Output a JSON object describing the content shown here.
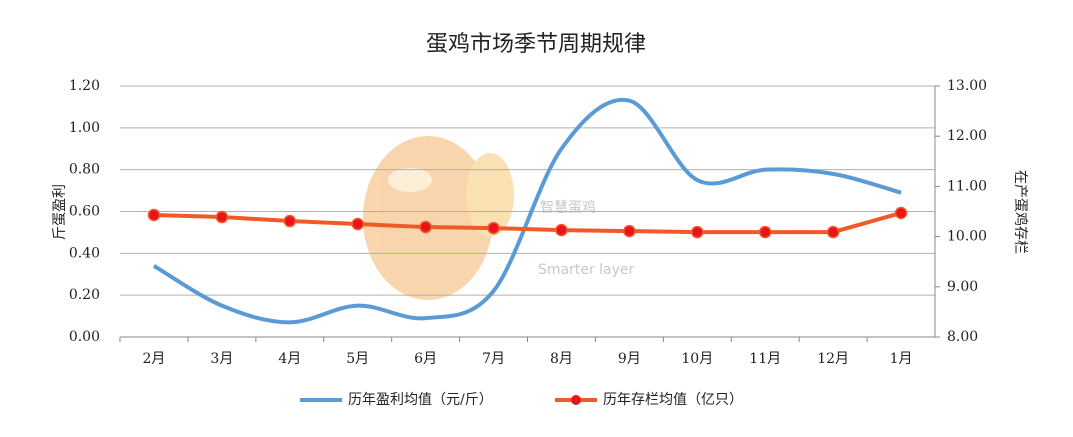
{
  "chart_data": {
    "type": "line",
    "title": "蛋鸡市场季节周期规律",
    "watermark": "智慧蛋鸡",
    "watermark_sub": "Smarter layer",
    "y_label": "斤蛋盈利",
    "y2_label": "在产蛋鸡存栏",
    "categories": [
      "2月",
      "3月",
      "4月",
      "5月",
      "6月",
      "7月",
      "8月",
      "9月",
      "10月",
      "11月",
      "12月",
      "1月"
    ],
    "ylim": [
      0,
      1.2
    ],
    "yticks": [
      {
        "value": 0,
        "label": "0.00"
      },
      {
        "value": 0.2,
        "label": "0.20"
      },
      {
        "value": 0.4,
        "label": "0.40"
      },
      {
        "value": 0.6,
        "label": "0.60"
      },
      {
        "value": 0.8,
        "label": "0.80"
      },
      {
        "value": 1.0,
        "label": "1.00"
      },
      {
        "value": 1.2,
        "label": "1.20"
      }
    ],
    "y2lim": [
      8,
      13
    ],
    "y2ticks": [
      {
        "value": 8,
        "label": "8.00"
      },
      {
        "value": 9,
        "label": "9.00"
      },
      {
        "value": 10,
        "label": "10.00"
      },
      {
        "value": 11,
        "label": "11.00"
      },
      {
        "value": 12,
        "label": "12.00"
      },
      {
        "value": 13,
        "label": "13.00"
      }
    ],
    "grid": true,
    "series": [
      {
        "name": "历年盈利均值（元/斤）",
        "color": "#5b9bd5",
        "smooth": true,
        "values": [
          0.34,
          0.15,
          0.07,
          0.15,
          0.09,
          0.22,
          0.9,
          1.13,
          0.75,
          0.8,
          0.78,
          0.69
        ]
      },
      {
        "name": "历年存栏均值（亿只）",
        "color": "#f05a28",
        "marker_color": "#e8141c",
        "axis": "y2",
        "values": [
          10.43,
          10.39,
          10.31,
          10.25,
          10.19,
          10.17,
          10.13,
          10.11,
          10.09,
          10.09,
          10.09,
          10.47
        ]
      }
    ]
  }
}
